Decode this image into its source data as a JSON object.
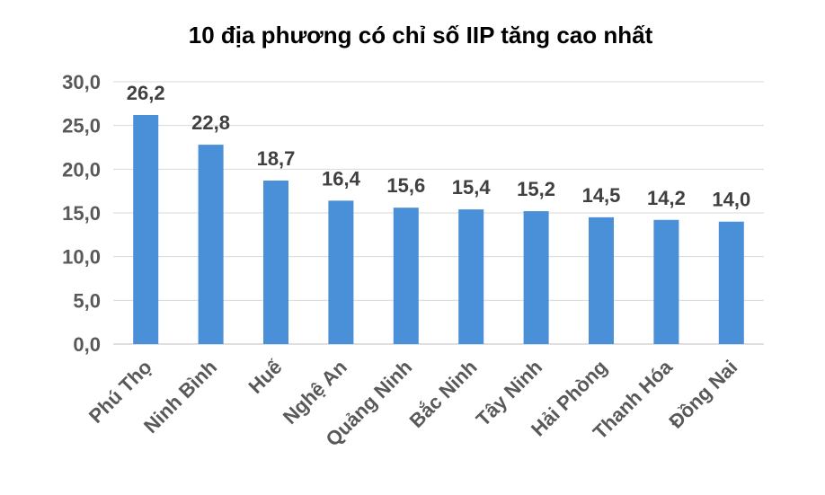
{
  "chart_data": {
    "type": "bar",
    "title": "10 địa phương có chỉ số IIP tăng cao nhất",
    "categories": [
      "Phú Thọ",
      "Ninh Bình",
      "Huế",
      "Nghệ An",
      "Quảng Ninh",
      "Bắc Ninh",
      "Tây Ninh",
      "Hải Phòng",
      "Thanh Hóa",
      "Đồng Nai"
    ],
    "values": [
      26.2,
      22.8,
      18.7,
      16.4,
      15.6,
      15.4,
      15.2,
      14.5,
      14.2,
      14.0
    ],
    "data_labels": [
      "26,2",
      "22,8",
      "18,7",
      "16,4",
      "15,6",
      "15,4",
      "15,2",
      "14,5",
      "14,2",
      "14,0"
    ],
    "ylim": [
      0,
      30
    ],
    "yticks": [
      0,
      5,
      10,
      15,
      20,
      25,
      30
    ],
    "ytick_labels": [
      "0,0",
      "5,0",
      "10,0",
      "15,0",
      "20,0",
      "25,0",
      "30,0"
    ],
    "xlabel": "",
    "ylabel": "",
    "grid": true,
    "legend": "none",
    "bar_color": "#4a90d9"
  }
}
